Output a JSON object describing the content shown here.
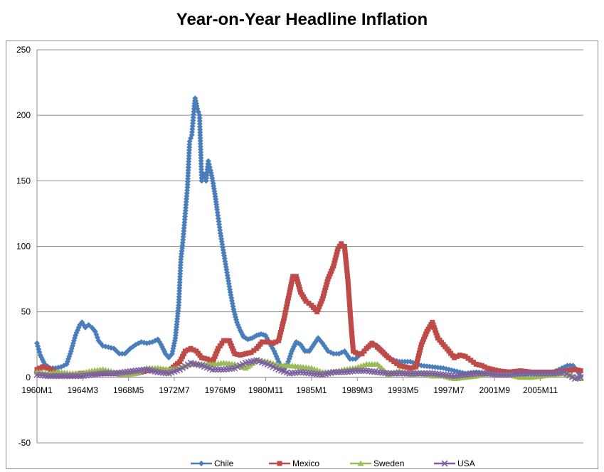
{
  "chart_data": {
    "type": "line",
    "title": "Year-on-Year Headline Inflation",
    "xlabel": "",
    "ylabel": "",
    "ylim": [
      -50,
      250
    ],
    "y_ticks": [
      -50,
      0,
      50,
      100,
      150,
      200,
      250
    ],
    "y_tick_labels": [
      "-50",
      "0",
      "50",
      "100",
      "150",
      "200",
      "250"
    ],
    "x_tick_labels": [
      "1960M1",
      "1964M3",
      "1968M5",
      "1972M7",
      "1976M9",
      "1980M11",
      "1985M1",
      "1989M3",
      "1993M5",
      "1997M7",
      "2001M9",
      "2005M11"
    ],
    "x_tick_years": [
      1960.0,
      1964.167,
      1968.333,
      1972.5,
      1976.667,
      1980.833,
      1985.0,
      1989.167,
      1993.333,
      1997.5,
      2001.667,
      2005.833
    ],
    "xlim": [
      1960.0,
      2009.75
    ],
    "grid": "horizontal",
    "legend_position": "bottom",
    "series": [
      {
        "name": "Chile",
        "color": "#4a7ebb",
        "marker": "diamond",
        "points": [
          [
            1960.0,
            26
          ],
          [
            1960.3,
            17
          ],
          [
            1960.7,
            10
          ],
          [
            1961.2,
            7
          ],
          [
            1961.7,
            7
          ],
          [
            1962.2,
            8
          ],
          [
            1962.7,
            10
          ],
          [
            1963.1,
            20
          ],
          [
            1963.5,
            32
          ],
          [
            1963.9,
            40
          ],
          [
            1964.1,
            42
          ],
          [
            1964.4,
            38
          ],
          [
            1964.7,
            40
          ],
          [
            1965.0,
            38
          ],
          [
            1965.3,
            35
          ],
          [
            1965.6,
            28
          ],
          [
            1966.0,
            24
          ],
          [
            1966.5,
            23
          ],
          [
            1967.0,
            22
          ],
          [
            1967.5,
            18
          ],
          [
            1968.0,
            18
          ],
          [
            1968.5,
            22
          ],
          [
            1969.0,
            25
          ],
          [
            1969.5,
            27
          ],
          [
            1970.0,
            26
          ],
          [
            1970.5,
            27
          ],
          [
            1971.0,
            29
          ],
          [
            1971.3,
            25
          ],
          [
            1971.7,
            18
          ],
          [
            1972.0,
            15
          ],
          [
            1972.3,
            18
          ],
          [
            1972.6,
            30
          ],
          [
            1972.9,
            55
          ],
          [
            1973.1,
            90
          ],
          [
            1973.3,
            105
          ],
          [
            1973.5,
            125
          ],
          [
            1973.7,
            145
          ],
          [
            1973.9,
            180
          ],
          [
            1974.1,
            185
          ],
          [
            1974.3,
            205
          ],
          [
            1974.4,
            213
          ],
          [
            1974.6,
            205
          ],
          [
            1974.8,
            200
          ],
          [
            1975.0,
            150
          ],
          [
            1975.2,
            155
          ],
          [
            1975.4,
            150
          ],
          [
            1975.6,
            165
          ],
          [
            1975.8,
            158
          ],
          [
            1976.0,
            150
          ],
          [
            1976.2,
            140
          ],
          [
            1976.4,
            128
          ],
          [
            1976.7,
            110
          ],
          [
            1977.0,
            95
          ],
          [
            1977.3,
            80
          ],
          [
            1977.6,
            65
          ],
          [
            1977.9,
            52
          ],
          [
            1978.2,
            42
          ],
          [
            1978.5,
            36
          ],
          [
            1978.8,
            31
          ],
          [
            1979.2,
            29
          ],
          [
            1979.6,
            30
          ],
          [
            1980.0,
            32
          ],
          [
            1980.4,
            33
          ],
          [
            1980.8,
            32
          ],
          [
            1981.2,
            26
          ],
          [
            1981.6,
            20
          ],
          [
            1982.0,
            12
          ],
          [
            1982.4,
            6
          ],
          [
            1982.8,
            10
          ],
          [
            1983.2,
            20
          ],
          [
            1983.6,
            27
          ],
          [
            1984.0,
            25
          ],
          [
            1984.4,
            20
          ],
          [
            1984.8,
            20
          ],
          [
            1985.2,
            25
          ],
          [
            1985.6,
            30
          ],
          [
            1986.0,
            26
          ],
          [
            1986.5,
            20
          ],
          [
            1987.0,
            18
          ],
          [
            1987.5,
            18
          ],
          [
            1988.0,
            20
          ],
          [
            1988.5,
            14
          ],
          [
            1989.0,
            14
          ],
          [
            1989.5,
            18
          ],
          [
            1990.0,
            22
          ],
          [
            1990.5,
            26
          ],
          [
            1991.0,
            24
          ],
          [
            1991.5,
            20
          ],
          [
            1992.0,
            15
          ],
          [
            1992.5,
            13
          ],
          [
            1993.0,
            12
          ],
          [
            1994.0,
            12
          ],
          [
            1995.0,
            9
          ],
          [
            1996.0,
            8
          ],
          [
            1997.0,
            7
          ],
          [
            1998.0,
            5
          ],
          [
            1999.0,
            3
          ],
          [
            2000.0,
            4
          ],
          [
            2001.0,
            3
          ],
          [
            2002.0,
            2
          ],
          [
            2003.0,
            3
          ],
          [
            2004.0,
            1
          ],
          [
            2005.0,
            3
          ],
          [
            2006.0,
            3
          ],
          [
            2007.0,
            4
          ],
          [
            2007.8,
            7
          ],
          [
            2008.3,
            9
          ],
          [
            2008.8,
            9
          ],
          [
            2009.2,
            5
          ],
          [
            2009.5,
            1
          ]
        ]
      },
      {
        "name": "Mexico",
        "color": "#be4b48",
        "marker": "square",
        "points": [
          [
            1960.0,
            6
          ],
          [
            1960.5,
            8
          ],
          [
            1961.0,
            7
          ],
          [
            1961.5,
            5
          ],
          [
            1962.0,
            1
          ],
          [
            1962.5,
            2
          ],
          [
            1963.0,
            1
          ],
          [
            1964.0,
            3
          ],
          [
            1965.0,
            3
          ],
          [
            1966.0,
            3
          ],
          [
            1967.0,
            3
          ],
          [
            1968.0,
            2
          ],
          [
            1969.0,
            3
          ],
          [
            1970.0,
            5
          ],
          [
            1971.0,
            6
          ],
          [
            1972.0,
            5
          ],
          [
            1973.0,
            12
          ],
          [
            1973.5,
            20
          ],
          [
            1974.0,
            22
          ],
          [
            1974.5,
            20
          ],
          [
            1975.0,
            15
          ],
          [
            1975.5,
            14
          ],
          [
            1976.0,
            12
          ],
          [
            1976.5,
            22
          ],
          [
            1977.0,
            28
          ],
          [
            1977.5,
            28
          ],
          [
            1978.0,
            18
          ],
          [
            1978.5,
            17
          ],
          [
            1979.0,
            18
          ],
          [
            1979.5,
            19
          ],
          [
            1980.0,
            22
          ],
          [
            1980.5,
            27
          ],
          [
            1981.0,
            27
          ],
          [
            1981.5,
            26
          ],
          [
            1982.0,
            28
          ],
          [
            1982.5,
            45
          ],
          [
            1983.0,
            65
          ],
          [
            1983.3,
            77
          ],
          [
            1983.6,
            77
          ],
          [
            1984.0,
            65
          ],
          [
            1984.5,
            58
          ],
          [
            1985.0,
            55
          ],
          [
            1985.5,
            50
          ],
          [
            1986.0,
            60
          ],
          [
            1986.5,
            75
          ],
          [
            1987.0,
            85
          ],
          [
            1987.4,
            98
          ],
          [
            1987.7,
            102
          ],
          [
            1988.0,
            100
          ],
          [
            1988.3,
            75
          ],
          [
            1988.6,
            40
          ],
          [
            1988.8,
            20
          ],
          [
            1989.2,
            18
          ],
          [
            1989.6,
            18
          ],
          [
            1990.0,
            22
          ],
          [
            1990.5,
            26
          ],
          [
            1991.0,
            23
          ],
          [
            1991.5,
            19
          ],
          [
            1992.0,
            15
          ],
          [
            1992.5,
            12
          ],
          [
            1993.0,
            9
          ],
          [
            1994.0,
            7
          ],
          [
            1994.5,
            8
          ],
          [
            1995.0,
            25
          ],
          [
            1995.5,
            35
          ],
          [
            1996.0,
            42
          ],
          [
            1996.5,
            30
          ],
          [
            1997.0,
            25
          ],
          [
            1997.5,
            20
          ],
          [
            1998.0,
            15
          ],
          [
            1998.5,
            17
          ],
          [
            1999.0,
            16
          ],
          [
            1999.5,
            13
          ],
          [
            2000.0,
            10
          ],
          [
            2000.5,
            9
          ],
          [
            2001.0,
            7
          ],
          [
            2002.0,
            5
          ],
          [
            2003.0,
            4
          ],
          [
            2004.0,
            5
          ],
          [
            2005.0,
            4
          ],
          [
            2006.0,
            4
          ],
          [
            2007.0,
            4
          ],
          [
            2008.0,
            5
          ],
          [
            2009.0,
            6
          ],
          [
            2009.5,
            5
          ]
        ]
      },
      {
        "name": "Sweden",
        "color": "#9bbb59",
        "marker": "triangle",
        "points": [
          [
            1960.0,
            4
          ],
          [
            1961.0,
            3
          ],
          [
            1962.0,
            4
          ],
          [
            1963.0,
            3
          ],
          [
            1964.0,
            3
          ],
          [
            1965.0,
            5
          ],
          [
            1966.0,
            6
          ],
          [
            1967.0,
            4
          ],
          [
            1968.0,
            2
          ],
          [
            1969.0,
            3
          ],
          [
            1970.0,
            7
          ],
          [
            1971.0,
            7
          ],
          [
            1972.0,
            6
          ],
          [
            1973.0,
            7
          ],
          [
            1974.0,
            10
          ],
          [
            1975.0,
            10
          ],
          [
            1976.0,
            10
          ],
          [
            1977.0,
            11
          ],
          [
            1978.0,
            10
          ],
          [
            1979.0,
            7
          ],
          [
            1980.0,
            13
          ],
          [
            1981.0,
            12
          ],
          [
            1982.0,
            9
          ],
          [
            1983.0,
            9
          ],
          [
            1984.0,
            8
          ],
          [
            1985.0,
            7
          ],
          [
            1986.0,
            4
          ],
          [
            1987.0,
            4
          ],
          [
            1988.0,
            6
          ],
          [
            1989.0,
            7
          ],
          [
            1990.0,
            10
          ],
          [
            1991.0,
            10
          ],
          [
            1992.0,
            2
          ],
          [
            1993.0,
            5
          ],
          [
            1994.0,
            2
          ],
          [
            1995.0,
            3
          ],
          [
            1996.0,
            1
          ],
          [
            1997.0,
            1
          ],
          [
            1998.0,
            -1
          ],
          [
            1999.0,
            0
          ],
          [
            2000.0,
            1
          ],
          [
            2001.0,
            3
          ],
          [
            2002.0,
            2
          ],
          [
            2003.0,
            2
          ],
          [
            2004.0,
            0
          ],
          [
            2005.0,
            0
          ],
          [
            2006.0,
            1
          ],
          [
            2007.0,
            2
          ],
          [
            2008.0,
            3
          ],
          [
            2009.0,
            0
          ],
          [
            2009.5,
            -1
          ]
        ]
      },
      {
        "name": "USA",
        "color": "#7d5fa0",
        "marker": "x",
        "points": [
          [
            1960.0,
            2
          ],
          [
            1961.0,
            1
          ],
          [
            1962.0,
            1
          ],
          [
            1963.0,
            1
          ],
          [
            1964.0,
            1
          ],
          [
            1965.0,
            2
          ],
          [
            1966.0,
            3
          ],
          [
            1967.0,
            3
          ],
          [
            1968.0,
            4
          ],
          [
            1969.0,
            5
          ],
          [
            1970.0,
            6
          ],
          [
            1971.0,
            4
          ],
          [
            1972.0,
            3
          ],
          [
            1973.0,
            6
          ],
          [
            1974.0,
            11
          ],
          [
            1975.0,
            9
          ],
          [
            1976.0,
            6
          ],
          [
            1977.0,
            6
          ],
          [
            1978.0,
            7
          ],
          [
            1979.0,
            11
          ],
          [
            1980.0,
            13
          ],
          [
            1981.0,
            10
          ],
          [
            1982.0,
            6
          ],
          [
            1983.0,
            3
          ],
          [
            1984.0,
            4
          ],
          [
            1985.0,
            3
          ],
          [
            1986.0,
            2
          ],
          [
            1987.0,
            4
          ],
          [
            1988.0,
            4
          ],
          [
            1989.0,
            5
          ],
          [
            1990.0,
            5
          ],
          [
            1991.0,
            4
          ],
          [
            1992.0,
            3
          ],
          [
            1993.0,
            3
          ],
          [
            1994.0,
            3
          ],
          [
            1995.0,
            3
          ],
          [
            1996.0,
            3
          ],
          [
            1997.0,
            2
          ],
          [
            1998.0,
            1
          ],
          [
            1999.0,
            2
          ],
          [
            2000.0,
            3
          ],
          [
            2001.0,
            3
          ],
          [
            2002.0,
            2
          ],
          [
            2003.0,
            2
          ],
          [
            2004.0,
            3
          ],
          [
            2005.0,
            3
          ],
          [
            2006.0,
            3
          ],
          [
            2007.0,
            3
          ],
          [
            2008.0,
            4
          ],
          [
            2009.0,
            -1
          ],
          [
            2009.5,
            0
          ]
        ]
      }
    ]
  }
}
